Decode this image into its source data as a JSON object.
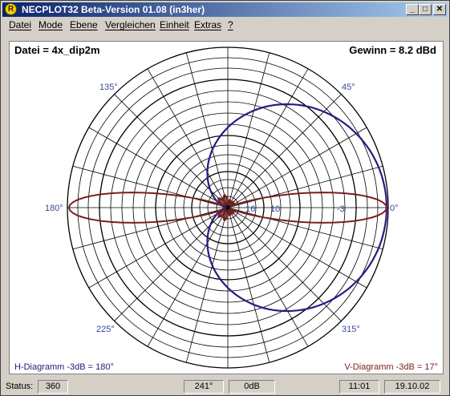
{
  "window": {
    "title": "NECPLOT32  Beta-Version 01.08 (in3her)",
    "icon_letter": "R",
    "buttons": [
      "_",
      "□",
      "✕"
    ]
  },
  "menu": [
    {
      "label": "Datei"
    },
    {
      "label": "Mode"
    },
    {
      "label": "Ebene"
    },
    {
      "label": "Vergleichen"
    },
    {
      "label": "Einheit"
    },
    {
      "label": "Extras"
    },
    {
      "label": "?"
    }
  ],
  "plot": {
    "file_label": "Datei = 4x_dip2m",
    "gain_label": "Gewinn =  8.2 dBd",
    "h_diagram": "H-Diagramm -3dB = 180°",
    "v_diagram": "V-Diagramm -3dB = 17°",
    "angle_labels": [
      "0°",
      "45°",
      "135°",
      "180°",
      "225°",
      "315°"
    ],
    "ring_labels": [
      "-3",
      "10",
      "16"
    ],
    "colors": {
      "h_pattern": "#2a1a80",
      "v_pattern": "#7a1e1e",
      "angle_text": "#3a4a9a"
    }
  },
  "status": {
    "label": "Status:",
    "value": "360",
    "angle": "241°",
    "db": "0dB",
    "time": "11:01",
    "date": "19.10.02"
  }
}
